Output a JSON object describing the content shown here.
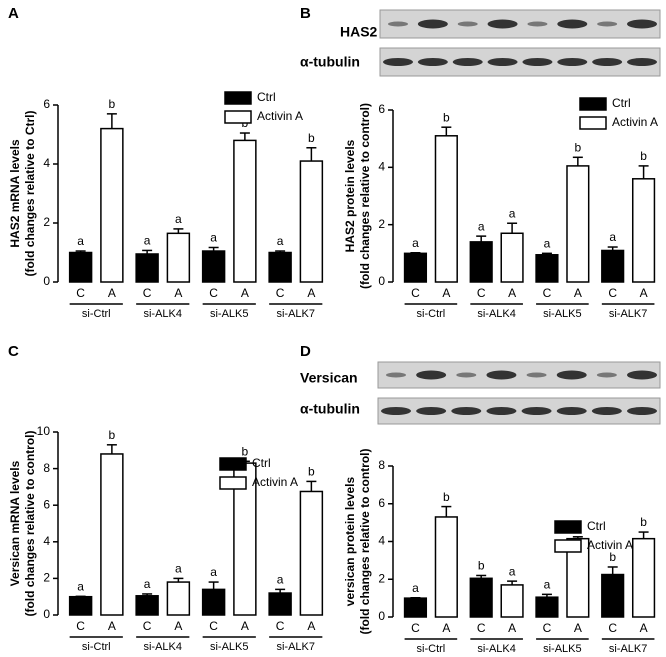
{
  "chart_data": [
    {
      "type": "bar",
      "panel": "A",
      "ylabel": [
        "HAS2 mRNA levels",
        "(fold changes relative to Ctrl)"
      ],
      "categories": [
        "si-Ctrl",
        "si-ALK4",
        "si-ALK5",
        "si-ALK7"
      ],
      "bar_labels": [
        "C",
        "A"
      ],
      "series": [
        {
          "name": "Ctrl",
          "color": "#000000",
          "values": [
            1.0,
            0.95,
            1.05,
            1.0
          ],
          "errors": [
            0.05,
            0.12,
            0.12,
            0.05
          ],
          "letters": [
            "a",
            "a",
            "a",
            "a"
          ]
        },
        {
          "name": "Activin A",
          "color": "#ffffff",
          "values": [
            5.2,
            1.65,
            4.8,
            4.1
          ],
          "errors": [
            0.5,
            0.15,
            0.25,
            0.45
          ],
          "letters": [
            "b",
            "a",
            "b",
            "b"
          ]
        }
      ],
      "ylim": [
        0,
        6
      ],
      "yticks": [
        0,
        2,
        4,
        6
      ]
    },
    {
      "type": "bar",
      "panel": "B",
      "blot_labels": [
        "HAS2",
        "α-tubulin"
      ],
      "ylabel": [
        "HAS2 protein levels",
        "(fold changes relative to control)"
      ],
      "categories": [
        "si-Ctrl",
        "si-ALK4",
        "si-ALK5",
        "si-ALK7"
      ],
      "bar_labels": [
        "C",
        "A"
      ],
      "series": [
        {
          "name": "Ctrl",
          "color": "#000000",
          "values": [
            1.0,
            1.4,
            0.95,
            1.1
          ],
          "errors": [
            0.02,
            0.2,
            0.05,
            0.12
          ],
          "letters": [
            "a",
            "a",
            "a",
            "a"
          ]
        },
        {
          "name": "Activin A",
          "color": "#ffffff",
          "values": [
            5.1,
            1.7,
            4.05,
            3.6
          ],
          "errors": [
            0.3,
            0.35,
            0.3,
            0.45
          ],
          "letters": [
            "b",
            "a",
            "b",
            "b"
          ]
        }
      ],
      "ylim": [
        0,
        6
      ],
      "yticks": [
        0,
        2,
        4,
        6
      ]
    },
    {
      "type": "bar",
      "panel": "C",
      "ylabel": [
        "Versican mRNA levels",
        "(fold changes relative to control)"
      ],
      "categories": [
        "si-Ctrl",
        "si-ALK4",
        "si-ALK5",
        "si-ALK7"
      ],
      "bar_labels": [
        "C",
        "A"
      ],
      "series": [
        {
          "name": "Ctrl",
          "color": "#000000",
          "values": [
            1.0,
            1.05,
            1.4,
            1.2
          ],
          "errors": [
            0.02,
            0.1,
            0.4,
            0.2
          ],
          "letters": [
            "a",
            "a",
            "a",
            "a"
          ]
        },
        {
          "name": "Activin A",
          "color": "#ffffff",
          "values": [
            8.8,
            1.8,
            8.3,
            6.75
          ],
          "errors": [
            0.5,
            0.2,
            0.1,
            0.55
          ],
          "letters": [
            "b",
            "a",
            "b",
            "b"
          ]
        }
      ],
      "ylim": [
        0,
        10
      ],
      "yticks": [
        0,
        2,
        4,
        6,
        8,
        10
      ]
    },
    {
      "type": "bar",
      "panel": "D",
      "blot_labels": [
        "Versican",
        "α-tubulin"
      ],
      "ylabel": [
        "versican protein levels",
        "(fold changes relative to control)"
      ],
      "categories": [
        "si-Ctrl",
        "si-ALK4",
        "si-ALK5",
        "si-ALK7"
      ],
      "bar_labels": [
        "C",
        "A"
      ],
      "series": [
        {
          "name": "Ctrl",
          "color": "#000000",
          "values": [
            1.0,
            2.05,
            1.05,
            2.25
          ],
          "errors": [
            0.02,
            0.15,
            0.15,
            0.4
          ],
          "letters": [
            "a",
            "b",
            "a",
            "b"
          ]
        },
        {
          "name": "Activin A",
          "color": "#ffffff",
          "values": [
            5.3,
            1.7,
            4.15,
            4.15
          ],
          "errors": [
            0.55,
            0.2,
            0.1,
            0.35
          ],
          "letters": [
            "b",
            "a",
            "b",
            "b"
          ]
        }
      ],
      "ylim": [
        0,
        8
      ],
      "yticks": [
        0,
        2,
        4,
        6,
        8
      ]
    }
  ]
}
